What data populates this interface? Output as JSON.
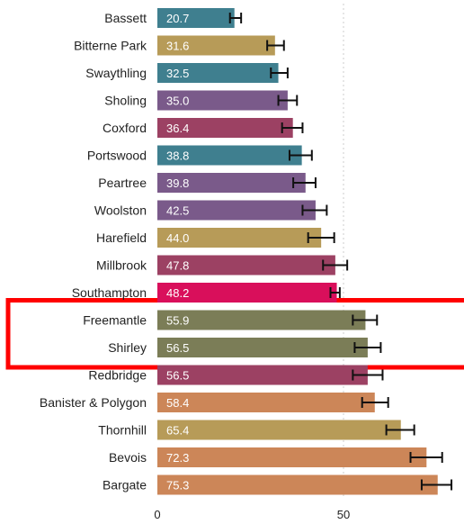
{
  "chart_data": {
    "type": "bar",
    "orientation": "horizontal",
    "categories": [
      "Bassett",
      "Bitterne Park",
      "Swaythling",
      "Sholing",
      "Coxford",
      "Portswood",
      "Peartree",
      "Woolston",
      "Harefield",
      "Millbrook",
      "Southampton",
      "Freemantle",
      "Shirley",
      "Redbridge",
      "Banister & Polygon",
      "Thornhill",
      "Bevois",
      "Bargate"
    ],
    "values": [
      20.7,
      31.6,
      32.5,
      35.0,
      36.4,
      38.8,
      39.8,
      42.5,
      44.0,
      47.8,
      48.2,
      55.9,
      56.5,
      56.5,
      58.4,
      65.4,
      72.3,
      75.3
    ],
    "value_labels": [
      "20.7",
      "31.6",
      "32.5",
      "35.0",
      "36.4",
      "38.8",
      "39.8",
      "42.5",
      "44.0",
      "47.8",
      "48.2",
      "55.9",
      "56.5",
      "56.5",
      "58.4",
      "65.4",
      "72.3",
      "75.3"
    ],
    "error_low": [
      19.5,
      29.5,
      30.5,
      32.5,
      33.5,
      35.5,
      36.5,
      39.0,
      40.5,
      44.5,
      46.5,
      52.5,
      53.0,
      52.5,
      55.0,
      61.5,
      68.0,
      71.0
    ],
    "error_high": [
      22.5,
      34.0,
      35.0,
      37.5,
      39.0,
      41.5,
      42.5,
      45.5,
      47.5,
      51.0,
      49.0,
      59.0,
      60.0,
      60.5,
      62.0,
      69.0,
      76.5,
      79.0
    ],
    "colors": [
      "#3f7f8f",
      "#b79b58",
      "#3f7f8f",
      "#7a5a8a",
      "#9c4163",
      "#3f7f8f",
      "#7a5a8a",
      "#7a5a8a",
      "#b79b58",
      "#9c4163",
      "#d90f5b",
      "#7b7d57",
      "#7b7d57",
      "#9c4163",
      "#cc8658",
      "#b79b58",
      "#cc8658",
      "#cc8658"
    ],
    "highlighted": [
      "Freemantle",
      "Shirley"
    ],
    "highlight_color": "#ff0000",
    "xticks": [
      0,
      50
    ],
    "xtick_labels": [
      "0",
      "50"
    ],
    "xlim": [
      0,
      80
    ],
    "gridlines": [
      50
    ],
    "title": "",
    "xlabel": "",
    "ylabel": ""
  }
}
